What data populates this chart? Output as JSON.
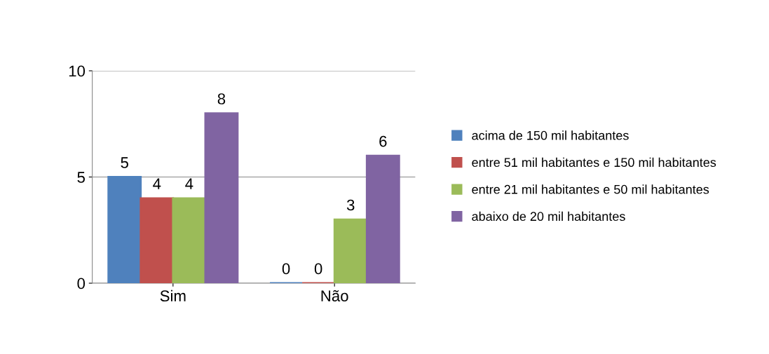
{
  "chart_data": {
    "type": "bar",
    "categories": [
      "Sim",
      "Não"
    ],
    "series": [
      {
        "name": "acima de 150 mil habitantes",
        "color": "#4f81bd",
        "values": [
          5,
          0
        ]
      },
      {
        "name": "entre 51 mil habitantes e 150 mil habitantes",
        "color": "#c0504d",
        "values": [
          4,
          0
        ]
      },
      {
        "name": "entre 21 mil habitantes e 50 mil habitantes",
        "color": "#9bbb59",
        "values": [
          4,
          3
        ]
      },
      {
        "name": "abaixo de 20 mil habitantes",
        "color": "#8064a2",
        "values": [
          8,
          6
        ]
      }
    ],
    "ylim": [
      0,
      10
    ],
    "yticks": [
      0,
      5,
      10
    ],
    "grid": "y",
    "legend": "right",
    "data_labels": true
  }
}
